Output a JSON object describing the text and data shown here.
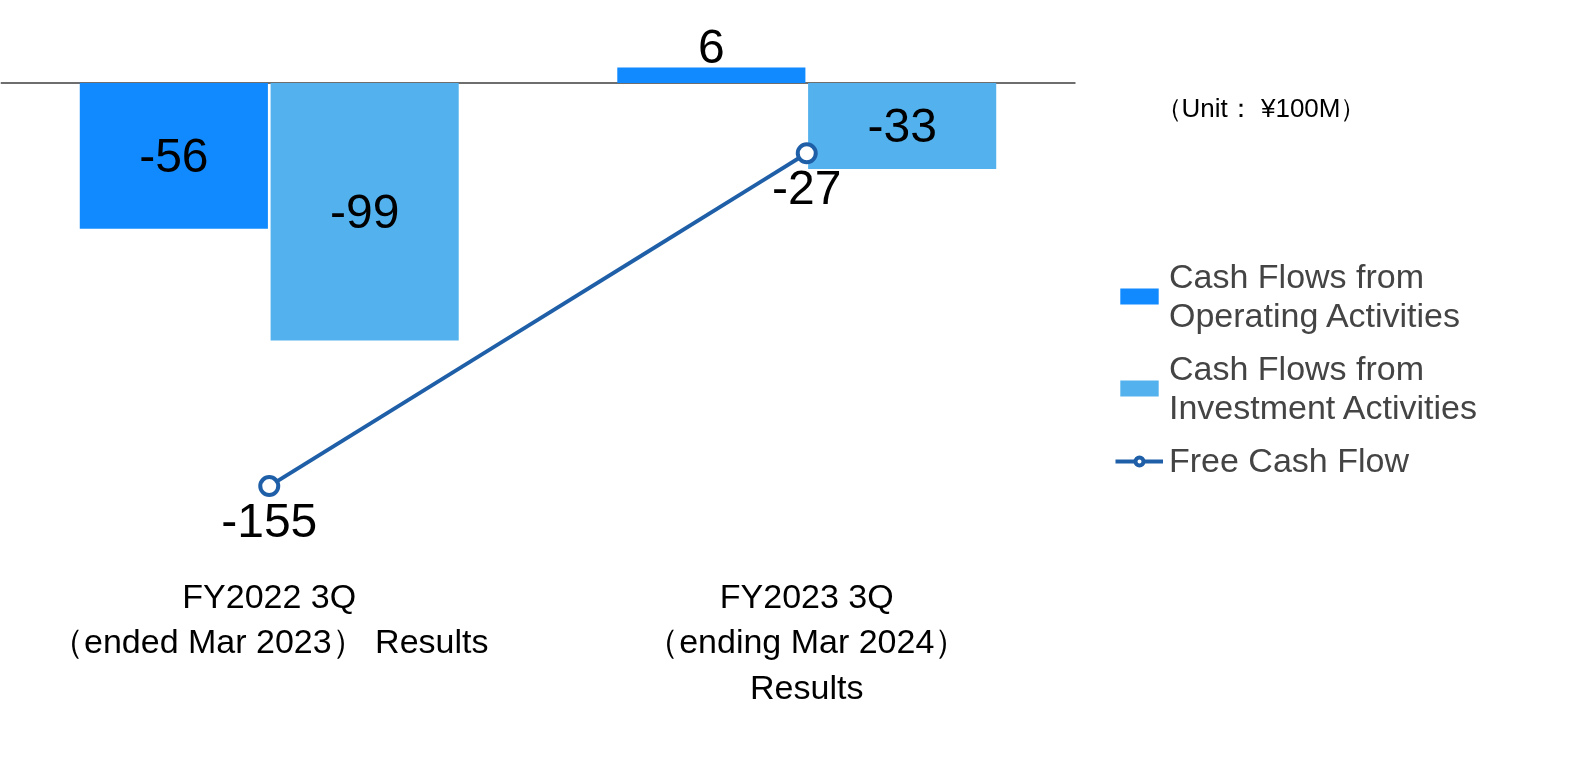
{
  "chart_data": {
    "type": "bar",
    "categories": [
      "FY2022 3Q\n（ended Mar 2023） Results",
      "FY2023 3Q\n（ending Mar 2024）\nResults"
    ],
    "series": [
      {
        "name": "Cash Flows from Operating Activities",
        "color": "#118aff",
        "values": [
          -56,
          6
        ]
      },
      {
        "name": "Cash Flows from Investment Activities",
        "color": "#53b2ee",
        "values": [
          -99,
          -33
        ]
      },
      {
        "name": "Free Cash Flow",
        "type": "line",
        "color": "#1f5fa8",
        "marker": "circle",
        "values": [
          -155,
          -27
        ]
      }
    ],
    "data_labels": true,
    "relative": false,
    "grid": false,
    "legend": "right",
    "annotations": [
      "（Unit： ¥100M）"
    ]
  }
}
